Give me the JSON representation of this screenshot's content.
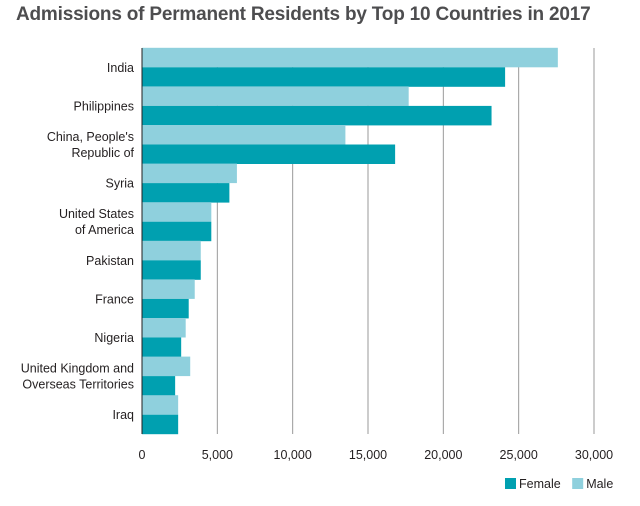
{
  "chart_data": {
    "type": "bar",
    "orientation": "horizontal",
    "title": "Admissions of Permanent Residents by Top 10 Countries in 2017",
    "categories": [
      [
        "India"
      ],
      [
        "Philippines"
      ],
      [
        "China, People's",
        "Republic of"
      ],
      [
        "Syria"
      ],
      [
        "United States",
        "of America"
      ],
      [
        "Pakistan"
      ],
      [
        "France"
      ],
      [
        "Nigeria"
      ],
      [
        "United Kingdom and",
        "Overseas Territories"
      ],
      [
        "Iraq"
      ]
    ],
    "series": [
      {
        "name": "Male",
        "color": "#8fd0dd",
        "values": [
          27600,
          17700,
          13500,
          6300,
          4600,
          3900,
          3500,
          2900,
          3200,
          2400
        ]
      },
      {
        "name": "Female",
        "color": "#00a0b0",
        "values": [
          24100,
          23200,
          16800,
          5800,
          4600,
          3900,
          3100,
          2600,
          2200,
          2400
        ]
      }
    ],
    "xlim": [
      0,
      30000
    ],
    "xticks": [
      0,
      5000,
      10000,
      15000,
      20000,
      25000,
      30000
    ],
    "xtick_labels": [
      "0",
      "5,000",
      "10,000",
      "15,000",
      "20,000",
      "25,000",
      "30,000"
    ],
    "grid": "vertical",
    "legend": {
      "position": "bottom-right",
      "order": [
        "Female",
        "Male"
      ]
    }
  }
}
